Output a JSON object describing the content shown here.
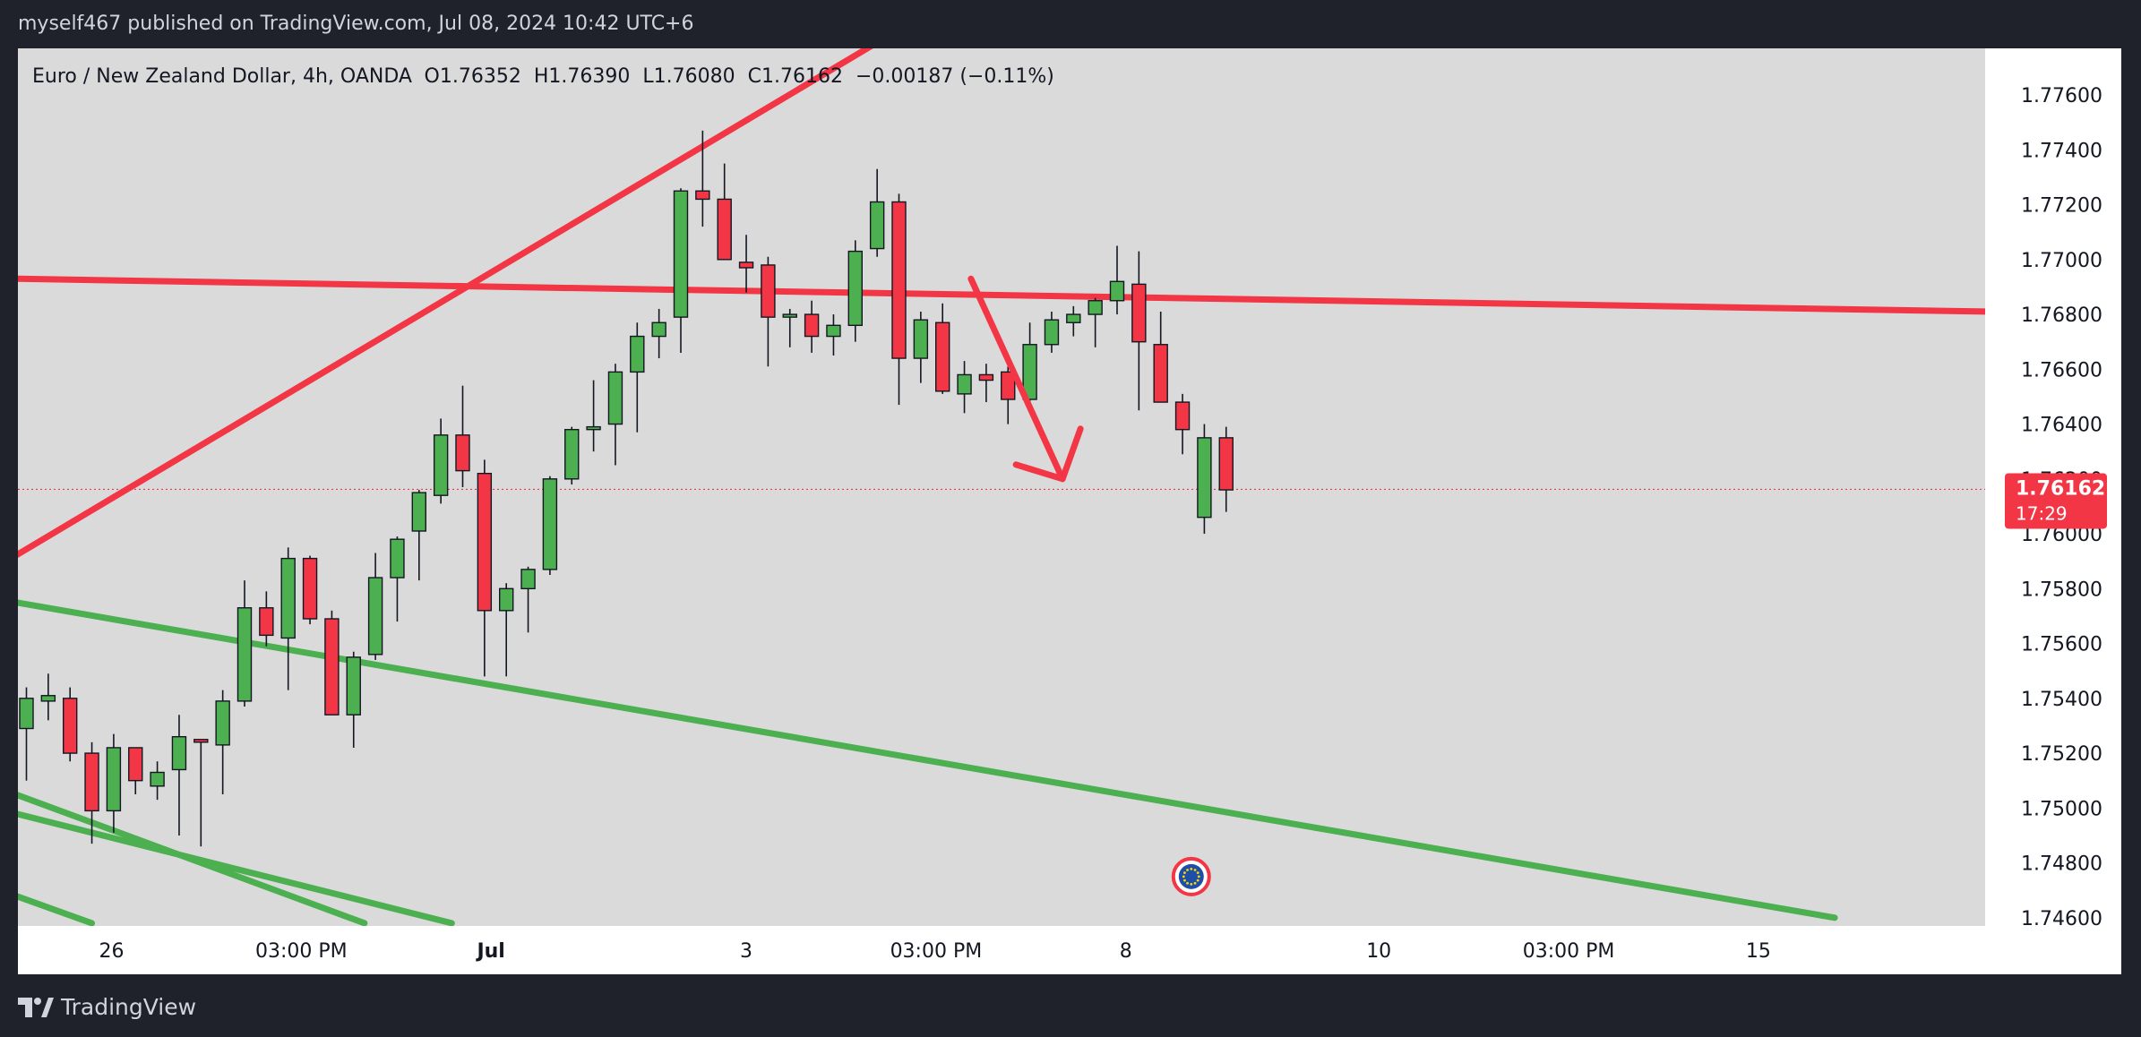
{
  "header": {
    "published_text": "myself467 published on TradingView.com, Jul 08, 2024 10:42 UTC+6"
  },
  "footer": {
    "brand": "TradingView"
  },
  "colors": {
    "background": "#1f222b",
    "plot_bg": "#dadada",
    "axis_bg": "#ffffff",
    "up_candle": "#4caf50",
    "down_candle": "#f23645",
    "wick": "#131722",
    "red_line": "#f23645",
    "green_line": "#4caf50",
    "text": "#131722"
  },
  "chart_data": {
    "type": "candlestick",
    "symbol_line": "Euro / New Zealand Dollar, 4h, OANDA",
    "ohlc": {
      "open_label": "O",
      "open": "1.76352",
      "high_label": "H",
      "high": "1.76390",
      "low_label": "L",
      "low": "1.76080",
      "close_label": "C",
      "close": "1.76162",
      "change": "−0.00187 (−0.11%)"
    },
    "current_price": "1.76162",
    "countdown": "17:29",
    "y_ticks": [
      "1.77600",
      "1.77400",
      "1.77200",
      "1.77000",
      "1.76800",
      "1.76600",
      "1.76400",
      "1.76200",
      "1.76000",
      "1.75800",
      "1.75600",
      "1.75400",
      "1.75200",
      "1.75000",
      "1.74800",
      "1.74600"
    ],
    "y_tick_values": [
      1.776,
      1.774,
      1.772,
      1.77,
      1.768,
      1.766,
      1.764,
      1.762,
      1.76,
      1.758,
      1.756,
      1.754,
      1.752,
      1.75,
      1.748,
      1.746
    ],
    "ylim": [
      1.7457,
      1.7777
    ],
    "x_ticks": [
      {
        "label": "26",
        "index": 3.9
      },
      {
        "label": "03:00 PM",
        "index": 12.6
      },
      {
        "label": "Jul",
        "index": 21.3
      },
      {
        "label": "3",
        "index": 33.0
      },
      {
        "label": "03:00 PM",
        "index": 41.7
      },
      {
        "label": "8",
        "index": 50.4
      },
      {
        "label": "10",
        "index": 62.0
      },
      {
        "label": "03:00 PM",
        "index": 70.7
      },
      {
        "label": "15",
        "index": 79.4
      }
    ],
    "candles": [
      {
        "o": 1.7529,
        "h": 1.7544,
        "l": 1.751,
        "c": 1.754
      },
      {
        "o": 1.7539,
        "h": 1.7549,
        "l": 1.7532,
        "c": 1.7541
      },
      {
        "o": 1.754,
        "h": 1.7544,
        "l": 1.7517,
        "c": 1.752
      },
      {
        "o": 1.752,
        "h": 1.7524,
        "l": 1.7487,
        "c": 1.7499
      },
      {
        "o": 1.7499,
        "h": 1.7527,
        "l": 1.7491,
        "c": 1.7522
      },
      {
        "o": 1.7522,
        "h": 1.7522,
        "l": 1.7505,
        "c": 1.751
      },
      {
        "o": 1.7508,
        "h": 1.7517,
        "l": 1.7503,
        "c": 1.7513
      },
      {
        "o": 1.7514,
        "h": 1.7534,
        "l": 1.749,
        "c": 1.7526
      },
      {
        "o": 1.7525,
        "h": 1.7525,
        "l": 1.7486,
        "c": 1.7524
      },
      {
        "o": 1.7523,
        "h": 1.7543,
        "l": 1.7505,
        "c": 1.7539
      },
      {
        "o": 1.7539,
        "h": 1.7583,
        "l": 1.7537,
        "c": 1.7573
      },
      {
        "o": 1.7573,
        "h": 1.7579,
        "l": 1.7559,
        "c": 1.7563
      },
      {
        "o": 1.7562,
        "h": 1.7595,
        "l": 1.7543,
        "c": 1.7591
      },
      {
        "o": 1.7591,
        "h": 1.7592,
        "l": 1.7567,
        "c": 1.7569
      },
      {
        "o": 1.7569,
        "h": 1.7572,
        "l": 1.7534,
        "c": 1.7534
      },
      {
        "o": 1.7534,
        "h": 1.7557,
        "l": 1.7522,
        "c": 1.7555
      },
      {
        "o": 1.7556,
        "h": 1.7593,
        "l": 1.7554,
        "c": 1.7584
      },
      {
        "o": 1.7584,
        "h": 1.7599,
        "l": 1.7568,
        "c": 1.7598
      },
      {
        "o": 1.7601,
        "h": 1.7616,
        "l": 1.7583,
        "c": 1.7615
      },
      {
        "o": 1.7614,
        "h": 1.7642,
        "l": 1.7611,
        "c": 1.7636
      },
      {
        "o": 1.7636,
        "h": 1.7654,
        "l": 1.7617,
        "c": 1.7623
      },
      {
        "o": 1.7622,
        "h": 1.7627,
        "l": 1.7548,
        "c": 1.7572
      },
      {
        "o": 1.7572,
        "h": 1.7582,
        "l": 1.7548,
        "c": 1.758
      },
      {
        "o": 1.758,
        "h": 1.7588,
        "l": 1.7564,
        "c": 1.7587
      },
      {
        "o": 1.7587,
        "h": 1.7621,
        "l": 1.7585,
        "c": 1.762
      },
      {
        "o": 1.762,
        "h": 1.7639,
        "l": 1.7618,
        "c": 1.7638
      },
      {
        "o": 1.7638,
        "h": 1.7656,
        "l": 1.763,
        "c": 1.7639
      },
      {
        "o": 1.764,
        "h": 1.7662,
        "l": 1.7625,
        "c": 1.7659
      },
      {
        "o": 1.7659,
        "h": 1.7677,
        "l": 1.7637,
        "c": 1.7672
      },
      {
        "o": 1.7672,
        "h": 1.7682,
        "l": 1.7664,
        "c": 1.7677
      },
      {
        "o": 1.7679,
        "h": 1.7726,
        "l": 1.7666,
        "c": 1.7725
      },
      {
        "o": 1.7725,
        "h": 1.7747,
        "l": 1.7712,
        "c": 1.7722
      },
      {
        "o": 1.7722,
        "h": 1.7735,
        "l": 1.77,
        "c": 1.77
      },
      {
        "o": 1.7699,
        "h": 1.7709,
        "l": 1.7688,
        "c": 1.7697
      },
      {
        "o": 1.7698,
        "h": 1.7701,
        "l": 1.7661,
        "c": 1.7679
      },
      {
        "o": 1.7679,
        "h": 1.7682,
        "l": 1.7668,
        "c": 1.768
      },
      {
        "o": 1.768,
        "h": 1.7685,
        "l": 1.7666,
        "c": 1.7672
      },
      {
        "o": 1.7672,
        "h": 1.768,
        "l": 1.7665,
        "c": 1.7676
      },
      {
        "o": 1.7676,
        "h": 1.7707,
        "l": 1.767,
        "c": 1.7703
      },
      {
        "o": 1.7704,
        "h": 1.7733,
        "l": 1.7701,
        "c": 1.7721
      },
      {
        "o": 1.7721,
        "h": 1.7724,
        "l": 1.7647,
        "c": 1.7664
      },
      {
        "o": 1.7664,
        "h": 1.7681,
        "l": 1.7655,
        "c": 1.7678
      },
      {
        "o": 1.7677,
        "h": 1.7684,
        "l": 1.7651,
        "c": 1.7652
      },
      {
        "o": 1.7651,
        "h": 1.7663,
        "l": 1.7644,
        "c": 1.7658
      },
      {
        "o": 1.7658,
        "h": 1.7662,
        "l": 1.7648,
        "c": 1.7656
      },
      {
        "o": 1.7659,
        "h": 1.7661,
        "l": 1.764,
        "c": 1.7649
      },
      {
        "o": 1.7649,
        "h": 1.7677,
        "l": 1.7647,
        "c": 1.7669
      },
      {
        "o": 1.7669,
        "h": 1.7681,
        "l": 1.7666,
        "c": 1.7678
      },
      {
        "o": 1.7677,
        "h": 1.7683,
        "l": 1.7672,
        "c": 1.768
      },
      {
        "o": 1.768,
        "h": 1.7686,
        "l": 1.7668,
        "c": 1.7685
      },
      {
        "o": 1.7685,
        "h": 1.7705,
        "l": 1.768,
        "c": 1.7692
      },
      {
        "o": 1.7691,
        "h": 1.7703,
        "l": 1.7645,
        "c": 1.767
      },
      {
        "o": 1.7669,
        "h": 1.7681,
        "l": 1.7649,
        "c": 1.7648
      },
      {
        "o": 1.7648,
        "h": 1.7651,
        "l": 1.7629,
        "c": 1.7638
      },
      {
        "o": 1.7606,
        "h": 1.764,
        "l": 1.76,
        "c": 1.7635
      },
      {
        "o": 1.7635,
        "h": 1.7639,
        "l": 1.7608,
        "c": 1.7616
      }
    ],
    "trendlines": [
      {
        "name": "red-rising-line",
        "color": "red",
        "x1": -0.5,
        "y1": 1.7592,
        "x2": 43.4,
        "y2": 1.78
      },
      {
        "name": "red-horizontal-line",
        "color": "red",
        "x1": -0.5,
        "y1": 1.7693,
        "x2": 97.5,
        "y2": 1.768
      },
      {
        "name": "green-channel-line",
        "color": "green",
        "x1": -0.5,
        "y1": 1.7575,
        "x2": 82.9,
        "y2": 1.746
      },
      {
        "name": "green-lower-line-1",
        "color": "green",
        "x1": -0.5,
        "y1": 1.7505,
        "x2": 15.5,
        "y2": 1.7458
      },
      {
        "name": "green-lower-line-2",
        "color": "green",
        "x1": -0.5,
        "y1": 1.7498,
        "x2": 19.5,
        "y2": 1.7458
      },
      {
        "name": "green-lower-line-3",
        "color": "green",
        "x1": -0.5,
        "y1": 1.7468,
        "x2": 3.0,
        "y2": 1.7458
      }
    ],
    "arrow": {
      "color": "red",
      "from": {
        "x": 43.3,
        "y": 1.7693
      },
      "to": {
        "x": 47.5,
        "y": 1.762
      }
    },
    "event_marker": {
      "x": 53.4,
      "y": 1.7475,
      "icon": "eu-flag-icon"
    },
    "grid": false,
    "legend": "top-left"
  }
}
